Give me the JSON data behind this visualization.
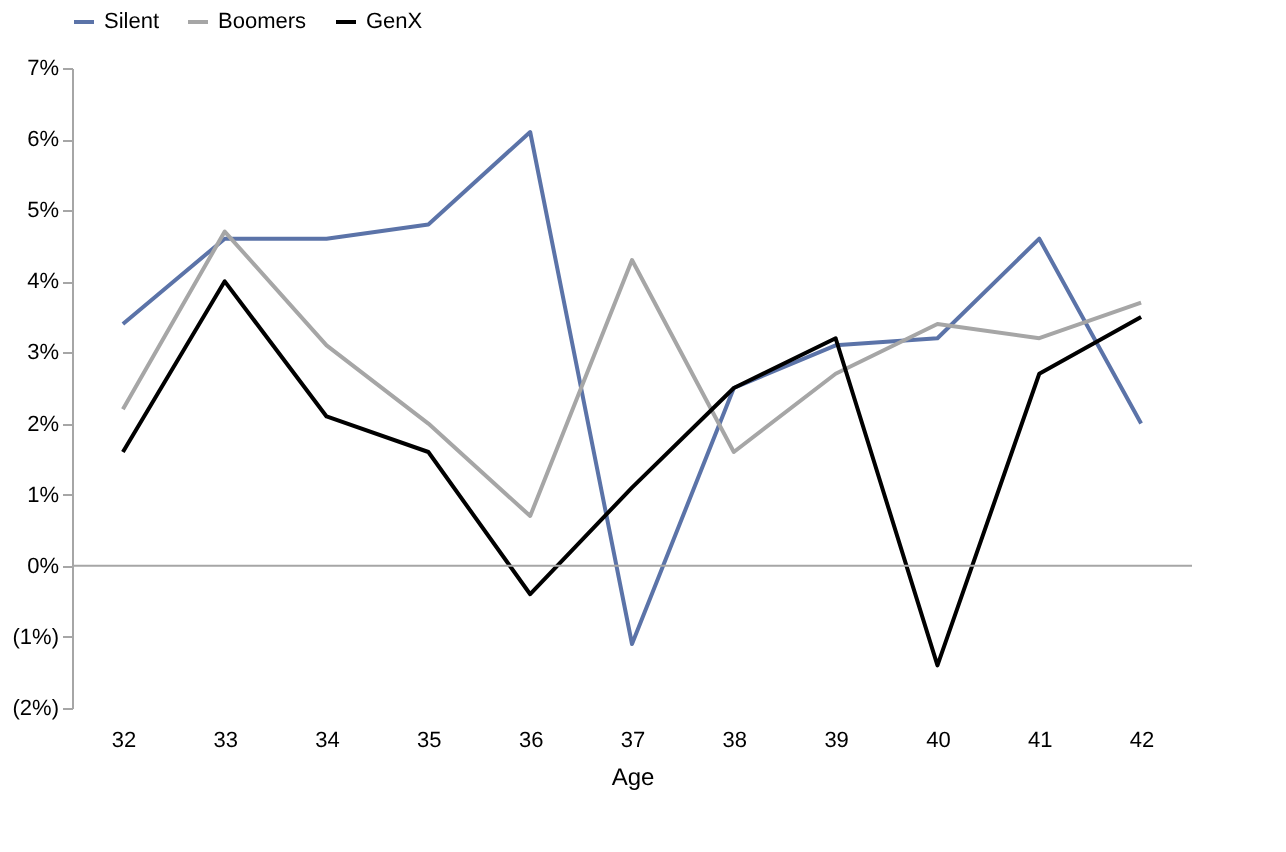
{
  "chart_data": {
    "type": "line",
    "xlabel": "Age",
    "categories": [
      "32",
      "33",
      "34",
      "35",
      "36",
      "37",
      "38",
      "39",
      "40",
      "41",
      "42"
    ],
    "series": [
      {
        "name": "Silent",
        "color": "#5b73a8",
        "values": [
          3.4,
          4.6,
          4.6,
          4.8,
          6.1,
          -1.1,
          2.5,
          3.1,
          3.2,
          4.6,
          2.0
        ]
      },
      {
        "name": "Boomers",
        "color": "#a6a6a6",
        "values": [
          2.2,
          4.7,
          3.1,
          2.0,
          0.7,
          4.3,
          1.6,
          2.7,
          3.4,
          3.2,
          3.7
        ]
      },
      {
        "name": "GenX",
        "color": "#000000",
        "values": [
          1.6,
          4.0,
          2.1,
          1.6,
          -0.4,
          1.1,
          2.5,
          3.2,
          -1.4,
          2.7,
          3.5
        ]
      }
    ],
    "ylim": [
      -2,
      7
    ],
    "yticks": [
      {
        "value": -2,
        "label": "(2%)"
      },
      {
        "value": -1,
        "label": "(1%)"
      },
      {
        "value": 0,
        "label": "0%"
      },
      {
        "value": 1,
        "label": "1%"
      },
      {
        "value": 2,
        "label": "2%"
      },
      {
        "value": 3,
        "label": "3%"
      },
      {
        "value": 4,
        "label": "4%"
      },
      {
        "value": 5,
        "label": "5%"
      },
      {
        "value": 6,
        "label": "6%"
      },
      {
        "value": 7,
        "label": "7%"
      }
    ],
    "ref_lines": [
      {
        "axis": "y",
        "value": 0,
        "color": "#a6a6a6"
      }
    ],
    "grid": false,
    "legend": "top",
    "marker": "none",
    "line_style": "solid"
  }
}
